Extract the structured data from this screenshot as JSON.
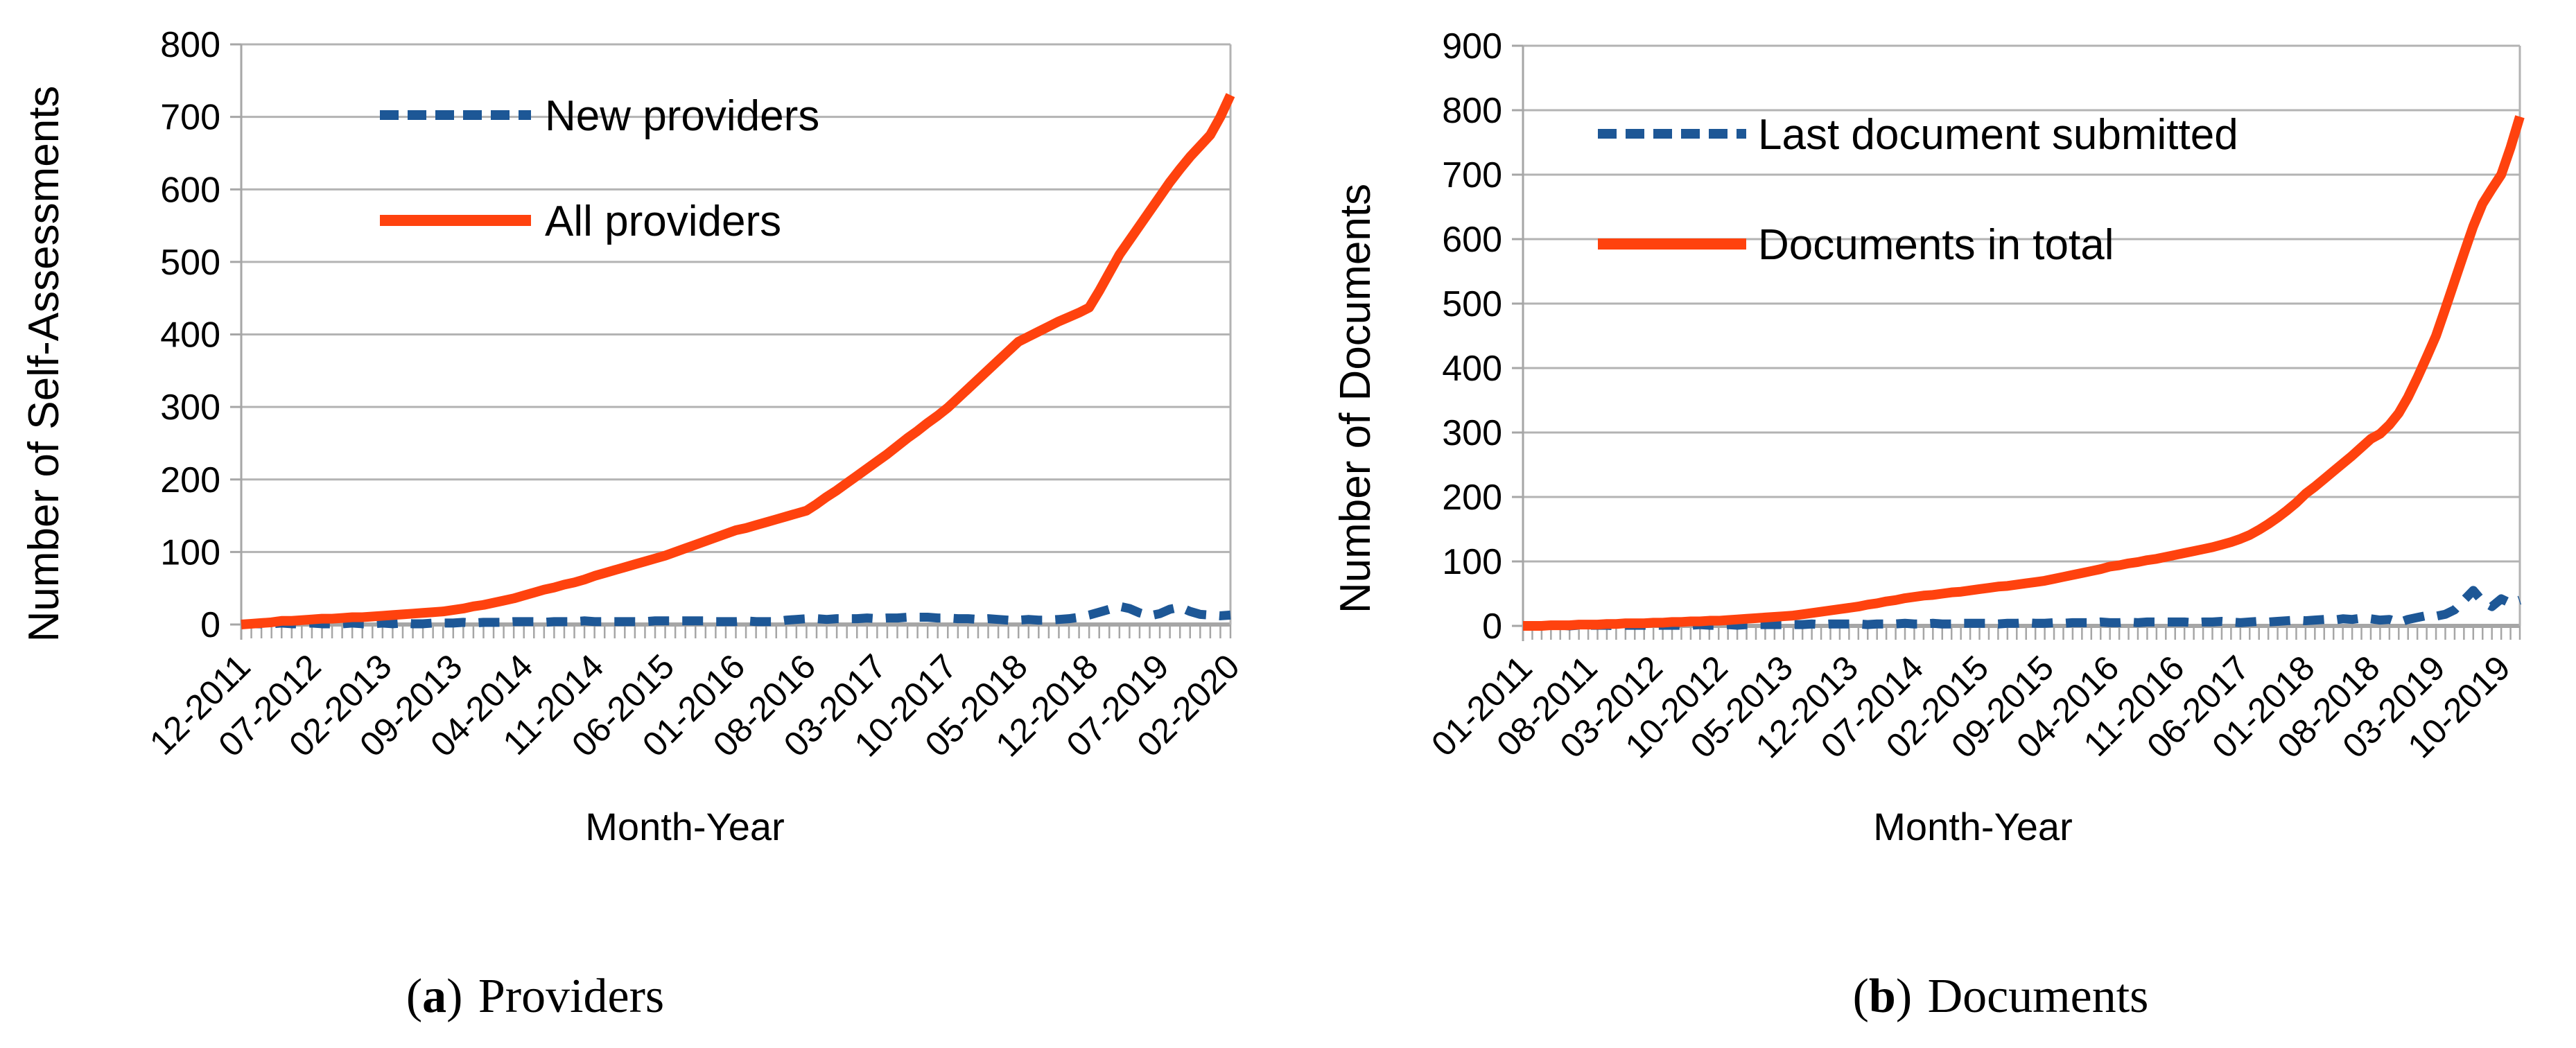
{
  "captions": [
    {
      "prefix": "(",
      "letter": "a",
      "suffix": ")",
      "text": "Providers"
    },
    {
      "prefix": "(",
      "letter": "b",
      "suffix": ")",
      "text": "Documents"
    }
  ],
  "colors": {
    "series_dashed_blue": "#1D5796",
    "series_solid_orange": "#FF420E",
    "gridline": "#b3b3b3",
    "axis": "#a6a6a6"
  },
  "chart_data": [
    {
      "type": "line",
      "title": "",
      "xlabel": "Month-Year",
      "ylabel": "Number of Self-Assessments",
      "ylim": [
        0,
        800
      ],
      "ytick_step": 100,
      "grid": true,
      "legend_position": "top-left-inside",
      "label_interval": 7,
      "x_labels": [
        "12-2011",
        "07-2012",
        "02-2013",
        "09-2013",
        "04-2014",
        "11-2014",
        "06-2015",
        "01-2016",
        "08-2016",
        "03-2017",
        "10-2017",
        "05-2018",
        "12-2018",
        "07-2019",
        "02-2020"
      ],
      "series": [
        {
          "name": "New providers",
          "style": "dashed",
          "color": "#1D5796",
          "values": [
            0,
            1,
            1,
            1,
            2,
            1,
            1,
            2,
            1,
            1,
            1,
            2,
            1,
            1,
            2,
            1,
            2,
            1,
            1,
            2,
            2,
            2,
            3,
            2,
            3,
            3,
            3,
            4,
            4,
            4,
            3,
            4,
            4,
            4,
            5,
            4,
            4,
            4,
            4,
            4,
            4,
            5,
            5,
            5,
            5,
            5,
            5,
            4,
            4,
            4,
            5,
            4,
            4,
            4,
            6,
            7,
            8,
            8,
            7,
            8,
            8,
            8,
            9,
            8,
            9,
            9,
            10,
            10,
            10,
            9,
            9,
            8,
            8,
            7,
            8,
            7,
            6,
            6,
            7,
            6,
            6,
            7,
            8,
            10,
            13,
            17,
            21,
            25,
            22,
            16,
            12,
            15,
            21,
            24,
            18,
            14,
            13,
            12,
            13
          ]
        },
        {
          "name": "All providers",
          "style": "solid",
          "color": "#FF420E",
          "values": [
            0,
            1,
            2,
            3,
            5,
            5,
            6,
            7,
            8,
            8,
            9,
            10,
            10,
            11,
            12,
            13,
            14,
            15,
            16,
            17,
            18,
            20,
            22,
            25,
            27,
            30,
            33,
            36,
            40,
            44,
            48,
            51,
            55,
            58,
            62,
            67,
            71,
            75,
            79,
            83,
            87,
            91,
            95,
            100,
            105,
            110,
            115,
            120,
            125,
            130,
            133,
            137,
            141,
            145,
            149,
            153,
            157,
            166,
            176,
            185,
            195,
            205,
            215,
            225,
            235,
            246,
            257,
            267,
            278,
            288,
            299,
            312,
            325,
            338,
            351,
            364,
            377,
            390,
            397,
            404,
            411,
            418,
            424,
            430,
            437,
            460,
            485,
            510,
            530,
            550,
            570,
            590,
            610,
            628,
            645,
            660,
            675,
            700,
            730
          ]
        }
      ]
    },
    {
      "type": "line",
      "title": "",
      "xlabel": "Month-Year",
      "ylabel": "Number of Documents",
      "ylim": [
        0,
        900
      ],
      "ytick_step": 100,
      "grid": true,
      "legend_position": "top-left-inside",
      "label_interval": 7,
      "x_labels": [
        "01-2011",
        "08-2011",
        "03-2012",
        "10-2012",
        "05-2013",
        "12-2013",
        "07-2014",
        "02-2015",
        "09-2015",
        "04-2016",
        "11-2016",
        "06-2017",
        "01-2018",
        "08-2018",
        "03-2019",
        "10-2019"
      ],
      "series": [
        {
          "name": "Last document submitted",
          "style": "dashed",
          "color": "#1D5796",
          "values": [
            0,
            0,
            0,
            0,
            1,
            0,
            1,
            1,
            1,
            1,
            0,
            1,
            1,
            1,
            1,
            1,
            1,
            1,
            1,
            2,
            1,
            1,
            2,
            1,
            2,
            2,
            2,
            2,
            2,
            2,
            2,
            3,
            2,
            3,
            3,
            3,
            3,
            2,
            3,
            3,
            3,
            4,
            3,
            3,
            4,
            3,
            3,
            4,
            4,
            4,
            4,
            3,
            4,
            4,
            5,
            4,
            4,
            5,
            4,
            5,
            5,
            5,
            6,
            5,
            5,
            6,
            5,
            6,
            6,
            6,
            6,
            6,
            5,
            6,
            6,
            7,
            6,
            5,
            6,
            7,
            6,
            7,
            8,
            9,
            8,
            9,
            10,
            9,
            11,
            10,
            12,
            11,
            9,
            10,
            5,
            10,
            13,
            16,
            15,
            18,
            25,
            40,
            55,
            38,
            30,
            42,
            35,
            40
          ]
        },
        {
          "name": "Documents in total",
          "style": "solid",
          "color": "#FF420E",
          "values": [
            0,
            0,
            0,
            1,
            1,
            1,
            2,
            2,
            2,
            3,
            3,
            4,
            4,
            4,
            5,
            5,
            6,
            6,
            7,
            7,
            8,
            8,
            9,
            10,
            11,
            12,
            13,
            14,
            15,
            16,
            18,
            20,
            22,
            24,
            26,
            28,
            30,
            33,
            35,
            38,
            40,
            43,
            45,
            47,
            48,
            50,
            52,
            53,
            55,
            57,
            59,
            61,
            62,
            64,
            66,
            68,
            70,
            73,
            76,
            79,
            82,
            85,
            88,
            92,
            94,
            97,
            99,
            102,
            104,
            107,
            110,
            113,
            116,
            119,
            122,
            126,
            130,
            135,
            141,
            149,
            158,
            168,
            179,
            191,
            205,
            216,
            228,
            240,
            252,
            264,
            277,
            290,
            298,
            312,
            330,
            355,
            385,
            417,
            450,
            492,
            535,
            578,
            620,
            655,
            678,
            700,
            742,
            790
          ]
        }
      ]
    }
  ]
}
